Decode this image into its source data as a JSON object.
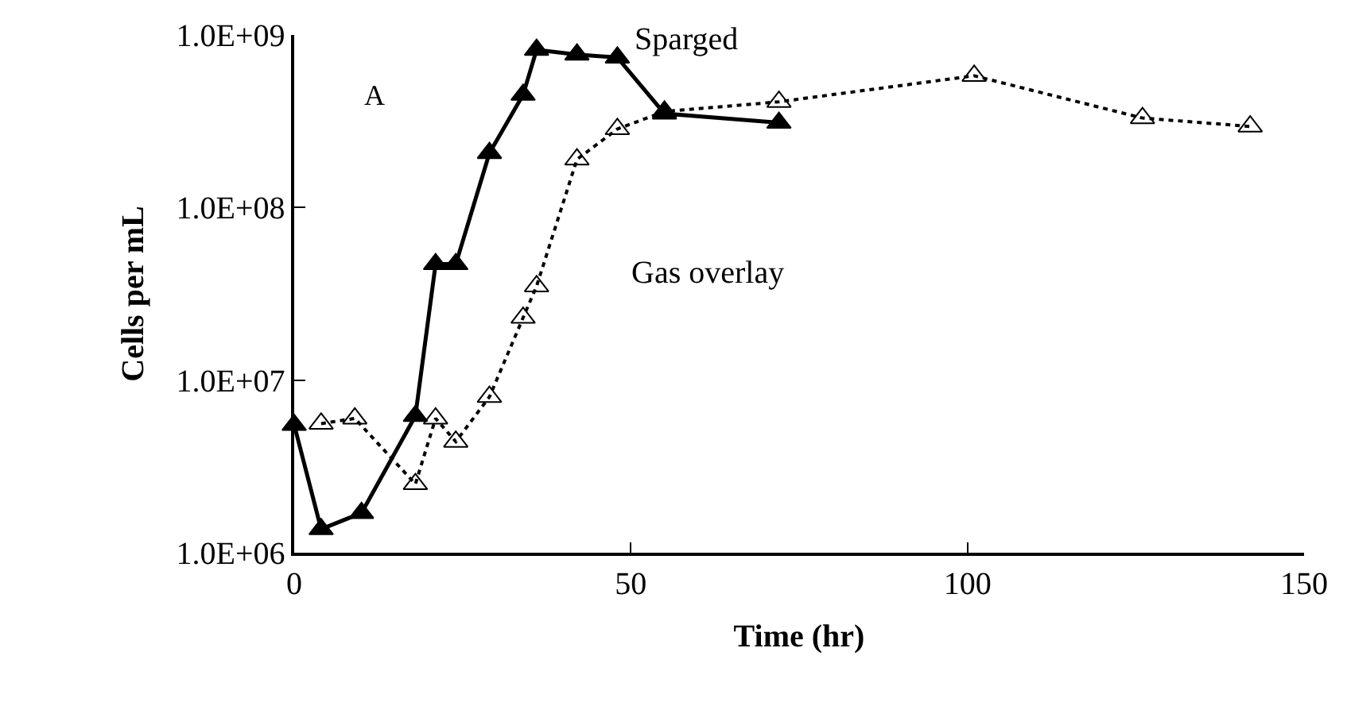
{
  "chart_data": {
    "type": "line",
    "xlabel": "Time (hr)",
    "ylabel": "Cells per mL",
    "log": "y",
    "legend": false,
    "marker": "triangle",
    "xlim": [
      0,
      150
    ],
    "xticks": [
      0,
      50,
      100,
      150
    ],
    "ylim": [
      1000000,
      1000000000
    ],
    "yticks": [
      {
        "value": 1000000,
        "label": "1.0E+06"
      },
      {
        "value": 10000000,
        "label": "1.0E+07"
      },
      {
        "value": 100000000,
        "label": "1.0E+08"
      },
      {
        "value": 1000000000,
        "label": "1.0E+09"
      }
    ],
    "annotations": [
      "A"
    ],
    "series": [
      {
        "name": "Sparged",
        "color": "#000000",
        "line_style": "solid",
        "x": [
          0,
          4,
          10,
          18,
          21,
          24,
          29,
          34,
          36,
          42,
          48,
          55,
          72
        ],
        "values": [
          5500000,
          1370000,
          1700000,
          6200000,
          47000000,
          47000000,
          207000000,
          450000000,
          820000000,
          770000000,
          740000000,
          350000000,
          310000000
        ]
      },
      {
        "name": "Gas overlay",
        "color": "#000000",
        "line_style": "dotted",
        "x": [
          4,
          9,
          18,
          21,
          24,
          29,
          34,
          36,
          42,
          48,
          55,
          72,
          101,
          126,
          142
        ],
        "values": [
          5600000,
          6000000,
          2500000,
          6000000,
          4400000,
          8000000,
          23000000,
          35000000,
          190000000,
          285000000,
          360000000,
          410000000,
          580000000,
          330000000,
          295000000
        ]
      }
    ]
  }
}
